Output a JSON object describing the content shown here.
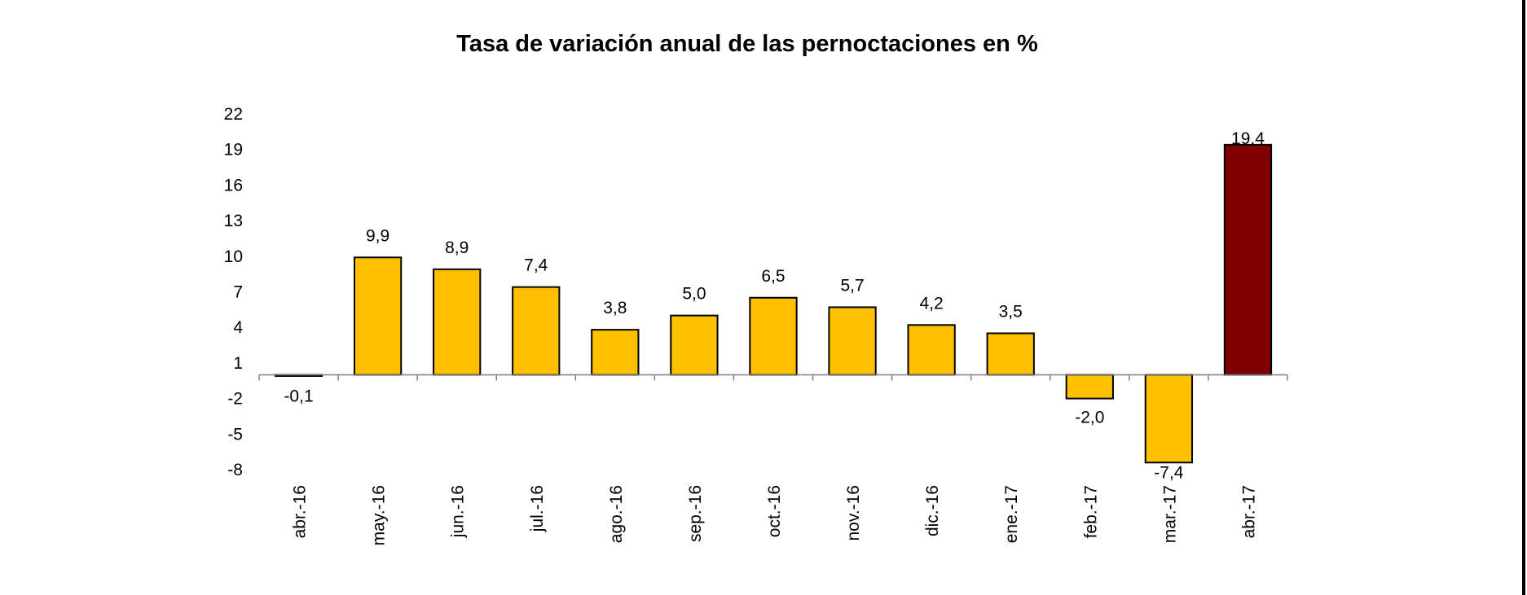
{
  "chart_data": {
    "type": "bar",
    "title": "Tasa de variación anual de las pernoctaciones en %",
    "xlabel": "",
    "ylabel": "",
    "categories": [
      "abr.-16",
      "may.-16",
      "jun.-16",
      "jul.-16",
      "ago.-16",
      "sep.-16",
      "oct.-16",
      "nov.-16",
      "dic.-16",
      "ene.-17",
      "feb.-17",
      "mar.-17",
      "abr.-17"
    ],
    "values": [
      -0.1,
      9.9,
      8.9,
      7.4,
      3.8,
      5.0,
      6.5,
      5.7,
      4.2,
      3.5,
      -2.0,
      -7.4,
      19.4
    ],
    "value_labels": [
      "-0,1",
      "9,9",
      "8,9",
      "7,4",
      "3,8",
      "5,0",
      "6,5",
      "5,7",
      "4,2",
      "3,5",
      "-2,0",
      "-7,4",
      "19,4"
    ],
    "yticks": [
      22,
      19,
      16,
      13,
      10,
      7,
      4,
      1,
      -2,
      -5,
      -8
    ],
    "ylim": [
      -8,
      22
    ],
    "grid": false,
    "legend": "none",
    "colors": {
      "bar": "#FFC000",
      "highlight_bar": "#800000",
      "bar_outline": "#000000",
      "axis": "#808080"
    },
    "highlight_index": 12
  }
}
